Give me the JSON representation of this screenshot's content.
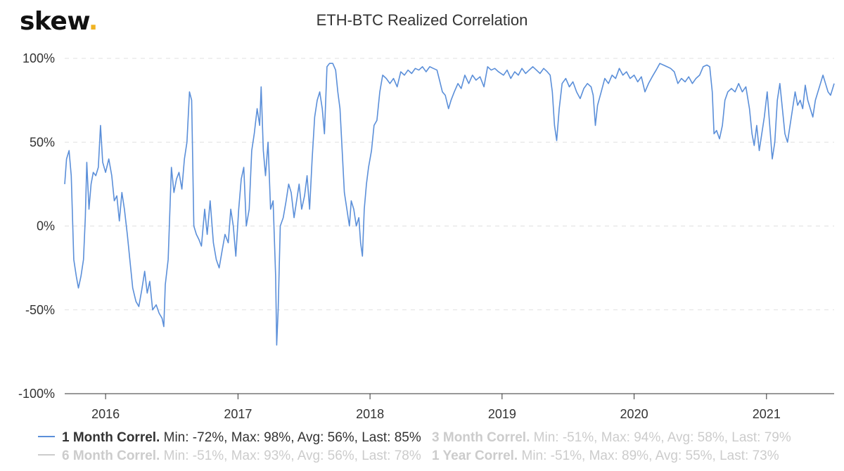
{
  "brand": {
    "logo_text": "skew",
    "logo_dot": ".",
    "logo_dot_color": "#f0b323"
  },
  "chart_data": {
    "type": "line",
    "title": "ETH-BTC Realized Correlation",
    "xlabel": "",
    "ylabel": "",
    "ylim": [
      -100,
      100
    ],
    "xlim": [
      "2015-09-10",
      "2021-07-07"
    ],
    "y_ticks": [
      {
        "value": 100,
        "label": "100%"
      },
      {
        "value": 50,
        "label": "50%"
      },
      {
        "value": 0,
        "label": "0%"
      },
      {
        "value": -50,
        "label": "-50%"
      },
      {
        "value": -100,
        "label": "-100%"
      }
    ],
    "x_ticks": [
      {
        "date": "2016-01-01",
        "label": "2016"
      },
      {
        "date": "2017-01-01",
        "label": "2017"
      },
      {
        "date": "2018-01-01",
        "label": "2018"
      },
      {
        "date": "2019-01-01",
        "label": "2019"
      },
      {
        "date": "2020-01-01",
        "label": "2020"
      },
      {
        "date": "2021-01-01",
        "label": "2021"
      }
    ],
    "grid": {
      "horizontal": true,
      "vertical": false
    },
    "legend_position": "bottom",
    "series": [
      {
        "name": "1 Month Correl.",
        "color": "#5b8fd9",
        "visible": true,
        "stats": "Min: -72%, Max: 98%, Avg: 56%, Last: 85%",
        "points": [
          [
            "2015-09-10",
            25
          ],
          [
            "2015-09-15",
            40
          ],
          [
            "2015-09-22",
            45
          ],
          [
            "2015-09-28",
            30
          ],
          [
            "2015-10-05",
            -20
          ],
          [
            "2015-10-12",
            -30
          ],
          [
            "2015-10-18",
            -37
          ],
          [
            "2015-10-25",
            -30
          ],
          [
            "2015-11-01",
            -20
          ],
          [
            "2015-11-06",
            5
          ],
          [
            "2015-11-10",
            38
          ],
          [
            "2015-11-16",
            10
          ],
          [
            "2015-11-22",
            25
          ],
          [
            "2015-11-28",
            32
          ],
          [
            "2015-12-05",
            30
          ],
          [
            "2015-12-12",
            35
          ],
          [
            "2015-12-18",
            60
          ],
          [
            "2015-12-24",
            38
          ],
          [
            "2016-01-01",
            32
          ],
          [
            "2016-01-10",
            40
          ],
          [
            "2016-01-18",
            30
          ],
          [
            "2016-01-25",
            15
          ],
          [
            "2016-02-01",
            18
          ],
          [
            "2016-02-08",
            3
          ],
          [
            "2016-02-15",
            20
          ],
          [
            "2016-02-22",
            10
          ],
          [
            "2016-03-01",
            -5
          ],
          [
            "2016-03-08",
            -20
          ],
          [
            "2016-03-16",
            -37
          ],
          [
            "2016-03-25",
            -45
          ],
          [
            "2016-04-02",
            -48
          ],
          [
            "2016-04-10",
            -38
          ],
          [
            "2016-04-18",
            -27
          ],
          [
            "2016-04-25",
            -40
          ],
          [
            "2016-05-02",
            -33
          ],
          [
            "2016-05-10",
            -50
          ],
          [
            "2016-05-20",
            -47
          ],
          [
            "2016-05-28",
            -52
          ],
          [
            "2016-06-05",
            -55
          ],
          [
            "2016-06-10",
            -60
          ],
          [
            "2016-06-14",
            -35
          ],
          [
            "2016-06-22",
            -20
          ],
          [
            "2016-07-01",
            35
          ],
          [
            "2016-07-08",
            20
          ],
          [
            "2016-07-15",
            28
          ],
          [
            "2016-07-22",
            32
          ],
          [
            "2016-07-30",
            22
          ],
          [
            "2016-08-06",
            40
          ],
          [
            "2016-08-13",
            50
          ],
          [
            "2016-08-20",
            80
          ],
          [
            "2016-08-26",
            75
          ],
          [
            "2016-09-01",
            0
          ],
          [
            "2016-09-08",
            -5
          ],
          [
            "2016-09-15",
            -8
          ],
          [
            "2016-09-22",
            -12
          ],
          [
            "2016-10-01",
            10
          ],
          [
            "2016-10-08",
            -5
          ],
          [
            "2016-10-16",
            15
          ],
          [
            "2016-10-25",
            -10
          ],
          [
            "2016-11-02",
            -20
          ],
          [
            "2016-11-10",
            -25
          ],
          [
            "2016-11-18",
            -15
          ],
          [
            "2016-11-26",
            -5
          ],
          [
            "2016-12-05",
            -10
          ],
          [
            "2016-12-12",
            10
          ],
          [
            "2016-12-19",
            0
          ],
          [
            "2016-12-26",
            -18
          ],
          [
            "2017-01-03",
            10
          ],
          [
            "2017-01-10",
            28
          ],
          [
            "2017-01-17",
            35
          ],
          [
            "2017-01-24",
            0
          ],
          [
            "2017-02-01",
            10
          ],
          [
            "2017-02-08",
            45
          ],
          [
            "2017-02-15",
            55
          ],
          [
            "2017-02-23",
            70
          ],
          [
            "2017-03-02",
            60
          ],
          [
            "2017-03-06",
            83
          ],
          [
            "2017-03-12",
            45
          ],
          [
            "2017-03-18",
            30
          ],
          [
            "2017-03-25",
            50
          ],
          [
            "2017-04-01",
            10
          ],
          [
            "2017-04-08",
            15
          ],
          [
            "2017-04-15",
            -30
          ],
          [
            "2017-04-18",
            -71
          ],
          [
            "2017-04-22",
            -50
          ],
          [
            "2017-04-28",
            0
          ],
          [
            "2017-05-06",
            5
          ],
          [
            "2017-05-14",
            15
          ],
          [
            "2017-05-21",
            25
          ],
          [
            "2017-05-28",
            20
          ],
          [
            "2017-06-05",
            5
          ],
          [
            "2017-06-12",
            15
          ],
          [
            "2017-06-19",
            25
          ],
          [
            "2017-06-26",
            10
          ],
          [
            "2017-07-04",
            18
          ],
          [
            "2017-07-11",
            30
          ],
          [
            "2017-07-18",
            10
          ],
          [
            "2017-07-25",
            40
          ],
          [
            "2017-08-01",
            65
          ],
          [
            "2017-08-08",
            75
          ],
          [
            "2017-08-15",
            80
          ],
          [
            "2017-08-22",
            70
          ],
          [
            "2017-08-28",
            55
          ],
          [
            "2017-09-04",
            95
          ],
          [
            "2017-09-11",
            97
          ],
          [
            "2017-09-20",
            97
          ],
          [
            "2017-09-28",
            93
          ],
          [
            "2017-10-04",
            80
          ],
          [
            "2017-10-10",
            70
          ],
          [
            "2017-10-16",
            45
          ],
          [
            "2017-10-22",
            20
          ],
          [
            "2017-10-29",
            10
          ],
          [
            "2017-11-05",
            0
          ],
          [
            "2017-11-10",
            15
          ],
          [
            "2017-11-17",
            10
          ],
          [
            "2017-11-24",
            0
          ],
          [
            "2017-12-01",
            5
          ],
          [
            "2017-12-06",
            -10
          ],
          [
            "2017-12-11",
            -18
          ],
          [
            "2017-12-16",
            10
          ],
          [
            "2017-12-22",
            25
          ],
          [
            "2017-12-28",
            35
          ],
          [
            "2018-01-05",
            45
          ],
          [
            "2018-01-12",
            60
          ],
          [
            "2018-01-20",
            63
          ],
          [
            "2018-01-28",
            80
          ],
          [
            "2018-02-05",
            90
          ],
          [
            "2018-02-15",
            88
          ],
          [
            "2018-02-25",
            85
          ],
          [
            "2018-03-07",
            88
          ],
          [
            "2018-03-17",
            83
          ],
          [
            "2018-03-27",
            92
          ],
          [
            "2018-04-06",
            90
          ],
          [
            "2018-04-16",
            93
          ],
          [
            "2018-04-26",
            91
          ],
          [
            "2018-05-06",
            94
          ],
          [
            "2018-05-16",
            93
          ],
          [
            "2018-05-26",
            95
          ],
          [
            "2018-06-05",
            92
          ],
          [
            "2018-06-15",
            95
          ],
          [
            "2018-06-25",
            94
          ],
          [
            "2018-07-05",
            93
          ],
          [
            "2018-07-12",
            87
          ],
          [
            "2018-07-20",
            80
          ],
          [
            "2018-07-28",
            78
          ],
          [
            "2018-08-06",
            70
          ],
          [
            "2018-08-13",
            75
          ],
          [
            "2018-08-22",
            80
          ],
          [
            "2018-09-01",
            85
          ],
          [
            "2018-09-10",
            82
          ],
          [
            "2018-09-20",
            90
          ],
          [
            "2018-10-01",
            85
          ],
          [
            "2018-10-11",
            90
          ],
          [
            "2018-10-21",
            87
          ],
          [
            "2018-11-01",
            89
          ],
          [
            "2018-11-12",
            83
          ],
          [
            "2018-11-22",
            95
          ],
          [
            "2018-12-02",
            93
          ],
          [
            "2018-12-12",
            94
          ],
          [
            "2018-12-22",
            92
          ],
          [
            "2019-01-05",
            90
          ],
          [
            "2019-01-15",
            93
          ],
          [
            "2019-01-25",
            88
          ],
          [
            "2019-02-05",
            92
          ],
          [
            "2019-02-15",
            90
          ],
          [
            "2019-02-25",
            94
          ],
          [
            "2019-03-07",
            91
          ],
          [
            "2019-03-17",
            93
          ],
          [
            "2019-03-27",
            95
          ],
          [
            "2019-04-06",
            93
          ],
          [
            "2019-04-16",
            91
          ],
          [
            "2019-04-26",
            94
          ],
          [
            "2019-05-06",
            92
          ],
          [
            "2019-05-14",
            90
          ],
          [
            "2019-05-20",
            80
          ],
          [
            "2019-05-26",
            60
          ],
          [
            "2019-06-01",
            51
          ],
          [
            "2019-06-08",
            70
          ],
          [
            "2019-06-16",
            85
          ],
          [
            "2019-06-26",
            88
          ],
          [
            "2019-07-06",
            83
          ],
          [
            "2019-07-16",
            86
          ],
          [
            "2019-07-26",
            80
          ],
          [
            "2019-08-05",
            76
          ],
          [
            "2019-08-15",
            82
          ],
          [
            "2019-08-25",
            85
          ],
          [
            "2019-09-04",
            83
          ],
          [
            "2019-09-10",
            78
          ],
          [
            "2019-09-16",
            60
          ],
          [
            "2019-09-22",
            72
          ],
          [
            "2019-10-02",
            80
          ],
          [
            "2019-10-12",
            88
          ],
          [
            "2019-10-22",
            85
          ],
          [
            "2019-11-01",
            90
          ],
          [
            "2019-11-11",
            88
          ],
          [
            "2019-11-21",
            94
          ],
          [
            "2019-12-01",
            90
          ],
          [
            "2019-12-11",
            92
          ],
          [
            "2019-12-21",
            88
          ],
          [
            "2020-01-01",
            90
          ],
          [
            "2020-01-11",
            86
          ],
          [
            "2020-01-21",
            89
          ],
          [
            "2020-01-31",
            80
          ],
          [
            "2020-02-10",
            85
          ],
          [
            "2020-02-20",
            89
          ],
          [
            "2020-03-02",
            93
          ],
          [
            "2020-03-12",
            97
          ],
          [
            "2020-03-22",
            96
          ],
          [
            "2020-04-01",
            95
          ],
          [
            "2020-04-11",
            94
          ],
          [
            "2020-04-21",
            92
          ],
          [
            "2020-05-01",
            85
          ],
          [
            "2020-05-11",
            88
          ],
          [
            "2020-05-21",
            86
          ],
          [
            "2020-05-31",
            89
          ],
          [
            "2020-06-10",
            85
          ],
          [
            "2020-06-20",
            88
          ],
          [
            "2020-06-30",
            90
          ],
          [
            "2020-07-10",
            95
          ],
          [
            "2020-07-20",
            96
          ],
          [
            "2020-07-28",
            95
          ],
          [
            "2020-08-04",
            80
          ],
          [
            "2020-08-09",
            55
          ],
          [
            "2020-08-16",
            57
          ],
          [
            "2020-08-24",
            52
          ],
          [
            "2020-09-01",
            60
          ],
          [
            "2020-09-08",
            75
          ],
          [
            "2020-09-16",
            80
          ],
          [
            "2020-09-26",
            82
          ],
          [
            "2020-10-06",
            80
          ],
          [
            "2020-10-16",
            85
          ],
          [
            "2020-10-26",
            80
          ],
          [
            "2020-11-05",
            83
          ],
          [
            "2020-11-15",
            70
          ],
          [
            "2020-11-22",
            55
          ],
          [
            "2020-11-28",
            48
          ],
          [
            "2020-12-05",
            60
          ],
          [
            "2020-12-12",
            45
          ],
          [
            "2020-12-19",
            55
          ],
          [
            "2020-12-26",
            65
          ],
          [
            "2021-01-03",
            80
          ],
          [
            "2021-01-10",
            60
          ],
          [
            "2021-01-17",
            40
          ],
          [
            "2021-01-24",
            50
          ],
          [
            "2021-01-31",
            75
          ],
          [
            "2021-02-07",
            85
          ],
          [
            "2021-02-14",
            70
          ],
          [
            "2021-02-21",
            55
          ],
          [
            "2021-02-28",
            50
          ],
          [
            "2021-03-07",
            60
          ],
          [
            "2021-03-14",
            70
          ],
          [
            "2021-03-21",
            80
          ],
          [
            "2021-03-28",
            72
          ],
          [
            "2021-04-04",
            75
          ],
          [
            "2021-04-11",
            70
          ],
          [
            "2021-04-18",
            84
          ],
          [
            "2021-04-25",
            75
          ],
          [
            "2021-05-02",
            70
          ],
          [
            "2021-05-09",
            65
          ],
          [
            "2021-05-16",
            75
          ],
          [
            "2021-05-23",
            80
          ],
          [
            "2021-05-30",
            85
          ],
          [
            "2021-06-06",
            90
          ],
          [
            "2021-06-13",
            85
          ],
          [
            "2021-06-20",
            80
          ],
          [
            "2021-06-27",
            78
          ],
          [
            "2021-07-03",
            82
          ],
          [
            "2021-07-07",
            85
          ]
        ]
      },
      {
        "name": "3 Month Correl.",
        "color": "#cccccc",
        "visible": false,
        "stats": "Min: -51%, Max: 94%, Avg: 58%, Last: 79%"
      },
      {
        "name": "6 Month Correl.",
        "color": "#cccccc",
        "visible": false,
        "stats": "Min: -51%, Max: 93%, Avg: 56%, Last: 78%"
      },
      {
        "name": "1 Year Correl.",
        "color": "#cccccc",
        "visible": false,
        "stats": "Min: -51%, Max: 89%, Avg: 55%, Last: 73%"
      }
    ]
  }
}
